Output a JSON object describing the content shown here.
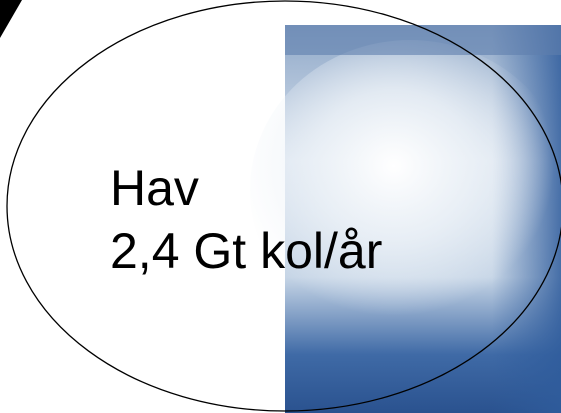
{
  "label": {
    "name": "Hav",
    "flux": "2,4 Gt kol/år"
  }
}
